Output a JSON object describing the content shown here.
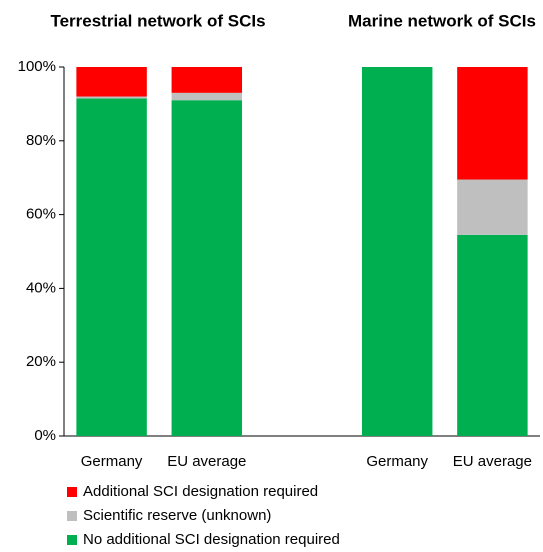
{
  "chart_data": {
    "type": "stacked_bar",
    "annotations": [
      "Terrestrial network of SCIs",
      "Marine network of SCIs"
    ],
    "categories": [
      "Germany",
      "EU average",
      null,
      "Germany",
      "EU average"
    ],
    "series": [
      {
        "name": "No additional SCI designation required",
        "color": "#00b050",
        "values": [
          91.5,
          91,
          null,
          100,
          54.5
        ]
      },
      {
        "name": "Scientific reserve (unknown)",
        "color": "#bfbfbf",
        "values": [
          0.5,
          2,
          null,
          0,
          15
        ]
      },
      {
        "name": "Additional SCI designation required",
        "color": "#ff0000",
        "values": [
          8,
          7,
          null,
          0,
          30.5
        ]
      }
    ],
    "ylim": [
      0,
      100
    ],
    "yticks": [
      {
        "value": 0,
        "label": "0%"
      },
      {
        "value": 20,
        "label": "20%"
      },
      {
        "value": 40,
        "label": "40%"
      },
      {
        "value": 60,
        "label": "60%"
      },
      {
        "value": 80,
        "label": "80%"
      },
      {
        "value": 100,
        "label": "100%"
      }
    ]
  }
}
